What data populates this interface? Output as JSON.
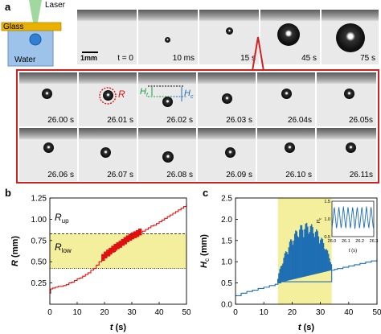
{
  "panel_a": {
    "label": "a",
    "schematic": {
      "laser": "Laser",
      "glass": "Glass",
      "water": "Water"
    },
    "scale_bar": "1mm",
    "top_times": [
      "t = 0",
      "10 ms",
      "15 s",
      "45 s",
      "75 s"
    ],
    "row1_times": [
      "26.00 s",
      "26.01 s",
      "26.02 s",
      "26.03 s",
      "26.04s",
      "26.05s"
    ],
    "row2_times": [
      "26.06 s",
      "26.07 s",
      "26.08 s",
      "26.09 s",
      "26.10 s",
      "26.11s"
    ],
    "annot_R": "R",
    "annot_Ht": "H",
    "annot_Ht_sub": "t",
    "annot_Hc": "H",
    "annot_Hc_sub": "c"
  },
  "panel_b": {
    "label": "b",
    "rup": "R",
    "rup_sub": "up",
    "rlow": "R",
    "rlow_sub": "low",
    "xlabel": "t",
    "xunit": " (s)",
    "ylabel": "R",
    "yunit": " (mm)"
  },
  "panel_c": {
    "label": "c",
    "xlabel": "t",
    "xunit": " (s)",
    "ylabel": "H",
    "ylabel_sub": "c",
    "yunit": " (mm)",
    "inset_xlabel": "t",
    "inset_xunit": " (s)",
    "inset_ylabel": "H",
    "inset_ylabel_sub": "c"
  },
  "colors": {
    "red": "#e01010",
    "blue": "#1f6fb4",
    "yellow": "#f3ef9c",
    "box": "#d02020"
  },
  "chart_data": [
    {
      "type": "line",
      "xlim": [
        0,
        50
      ],
      "ylim": [
        0,
        1.25
      ],
      "xticks": [
        0,
        10,
        20,
        30,
        40,
        50
      ],
      "yticks": [
        0.25,
        0.5,
        0.75,
        1.0,
        1.25
      ],
      "ytick_labels": [
        "0.25",
        "0.50",
        "0.75",
        "1.00",
        "1.25"
      ],
      "band": [
        0.42,
        0.83
      ],
      "hlines": [
        0.83,
        0.42
      ],
      "series": [
        {
          "x": [
            0,
            0.3,
            1,
            2,
            3,
            4,
            5,
            6,
            7,
            8,
            9,
            10,
            11,
            12,
            13,
            14,
            15,
            16,
            17,
            18,
            19,
            20,
            22,
            24,
            26,
            28,
            30,
            32,
            33,
            34,
            35,
            36,
            37,
            38,
            39,
            40,
            41,
            42,
            43,
            44,
            45,
            46,
            47,
            48,
            49,
            50
          ],
          "y": [
            0.13,
            0.18,
            0.19,
            0.2,
            0.21,
            0.21,
            0.22,
            0.23,
            0.25,
            0.26,
            0.28,
            0.3,
            0.31,
            0.33,
            0.35,
            0.37,
            0.4,
            0.42,
            0.46,
            0.5,
            0.53,
            0.57,
            0.62,
            0.67,
            0.71,
            0.76,
            0.8,
            0.83,
            0.85,
            0.86,
            0.88,
            0.9,
            0.92,
            0.93,
            0.95,
            0.97,
            0.99,
            1.01,
            1.03,
            1.05,
            1.07,
            1.09,
            1.11,
            1.13,
            1.15,
            1.18
          ]
        }
      ]
    },
    {
      "type": "line",
      "xlim": [
        0,
        50
      ],
      "ylim": [
        0,
        2.5
      ],
      "xticks": [
        0,
        10,
        20,
        30,
        40,
        50
      ],
      "yticks": [
        0.0,
        0.5,
        1.0,
        1.5,
        2.0,
        2.5
      ],
      "ytick_labels": [
        "0.0",
        "0.5",
        "1.0",
        "1.5",
        "2.0",
        "2.5"
      ],
      "band": [
        15,
        34
      ],
      "series": [
        {
          "x": [
            0,
            2,
            4,
            6,
            8,
            10,
            12,
            14,
            15,
            16,
            34,
            35,
            36,
            38,
            40,
            42,
            44,
            46,
            48,
            50
          ],
          "y": [
            0.2,
            0.26,
            0.3,
            0.33,
            0.37,
            0.4,
            0.44,
            0.47,
            0.5,
            0.53,
            0.8,
            0.82,
            0.84,
            0.87,
            0.9,
            0.93,
            0.96,
            0.99,
            1.02,
            1.05
          ]
        }
      ],
      "inset": {
        "xlim": [
          26.0,
          26.3
        ],
        "ylim": [
          0.5,
          1.5
        ],
        "xticks": [
          26.0,
          26.1,
          26.2,
          26.3
        ],
        "xtick_labels": [
          "26.0",
          "26.1",
          "26.2",
          "26.3"
        ],
        "yticks": [
          0.5,
          1.0,
          1.5
        ],
        "ytick_labels": [
          "0.5",
          "1.0",
          "1.5"
        ],
        "period": 0.033,
        "min": 0.72,
        "max": 1.35
      }
    }
  ]
}
